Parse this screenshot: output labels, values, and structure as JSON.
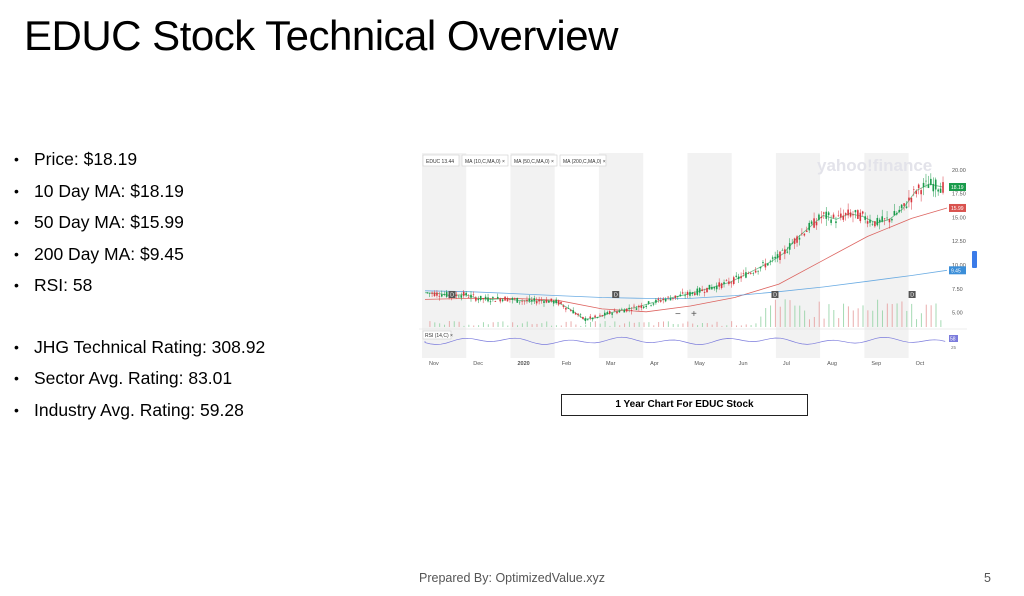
{
  "slide": {
    "title": "EDUC Stock Technical Overview",
    "bullets_group1": [
      "Price: $18.19",
      "10 Day MA: $18.19",
      "50 Day MA: $15.99",
      "200 Day MA: $9.45",
      "RSI: 58"
    ],
    "bullets_group2": [
      "JHG Technical Rating: 308.92",
      "Sector Avg. Rating: 83.01",
      "Industry Avg. Rating: 59.28"
    ],
    "chart_caption": "1 Year Chart For EDUC Stock",
    "footer": "Prepared By: OptimizedValue.xyz",
    "page_number": "5"
  },
  "chart_data": {
    "type": "line",
    "watermark": "yahoo!finance",
    "legend": [
      "EDUC 13.44",
      "MA (10,C,MA,0)",
      "MA (50,C,MA,0)",
      "MA (200,C,MA,0)"
    ],
    "x_ticks": [
      "Nov",
      "Dec",
      "2020",
      "Feb",
      "Mar",
      "Apr",
      "May",
      "Jun",
      "Jul",
      "Aug",
      "Sep",
      "Oct"
    ],
    "y_ticks": [
      "20.00",
      "17.50",
      "15.00",
      "12.50",
      "10.00",
      "7.50",
      "5.00"
    ],
    "ylim": [
      3.5,
      20.5
    ],
    "price_labels": {
      "price": "18.19",
      "ma50": "15.99",
      "ma200": "9.45"
    },
    "rsi": {
      "label": "RSI (14,C)",
      "value": "58",
      "lower": "25"
    },
    "colors": {
      "price": "#1a9b4b",
      "ma10": "#2e9e3a",
      "ma50": "#d9534f",
      "ma200": "#5ba3e0",
      "rsi": "#7b7bdc"
    },
    "series": [
      {
        "name": "EDUC",
        "x": [
          0,
          0.3,
          0.6,
          0.9,
          1.2,
          1.5,
          1.8,
          2.1,
          2.4,
          2.7,
          3.0,
          3.3,
          3.6,
          3.9,
          4.2,
          4.5,
          4.8,
          5.1,
          5.4,
          5.7,
          6.0,
          6.3,
          6.6,
          6.9,
          7.2,
          7.5,
          7.8,
          8.1,
          8.4,
          8.7,
          9.0,
          9.3,
          9.6,
          9.9,
          10.2,
          10.5,
          10.8,
          11.1,
          11.4,
          11.7
        ],
        "y": [
          7.1,
          7.0,
          6.8,
          6.9,
          6.5,
          6.4,
          6.5,
          6.3,
          6.2,
          6.3,
          6.1,
          5.3,
          4.3,
          4.5,
          5.0,
          5.3,
          5.6,
          6.0,
          6.4,
          6.7,
          7.0,
          7.4,
          7.8,
          8.2,
          8.9,
          9.6,
          10.3,
          11.2,
          12.8,
          14.0,
          15.2,
          14.8,
          15.4,
          15.1,
          14.4,
          14.8,
          15.9,
          17.8,
          18.5,
          18.19
        ]
      },
      {
        "name": "MA 50",
        "x": [
          0,
          1,
          2,
          3,
          4,
          5,
          6,
          7,
          8,
          9,
          10,
          11,
          11.8
        ],
        "y": [
          6.4,
          6.5,
          6.5,
          6.3,
          5.4,
          5.1,
          5.7,
          6.6,
          8.0,
          10.5,
          13.0,
          14.9,
          15.99
        ]
      },
      {
        "name": "MA 200",
        "x": [
          0,
          1,
          2,
          3,
          4,
          5,
          6,
          7,
          8,
          9,
          10,
          11,
          11.8
        ],
        "y": [
          7.3,
          7.2,
          7.0,
          6.8,
          6.6,
          6.5,
          6.5,
          6.8,
          7.2,
          7.7,
          8.3,
          8.9,
          9.45
        ]
      }
    ]
  }
}
